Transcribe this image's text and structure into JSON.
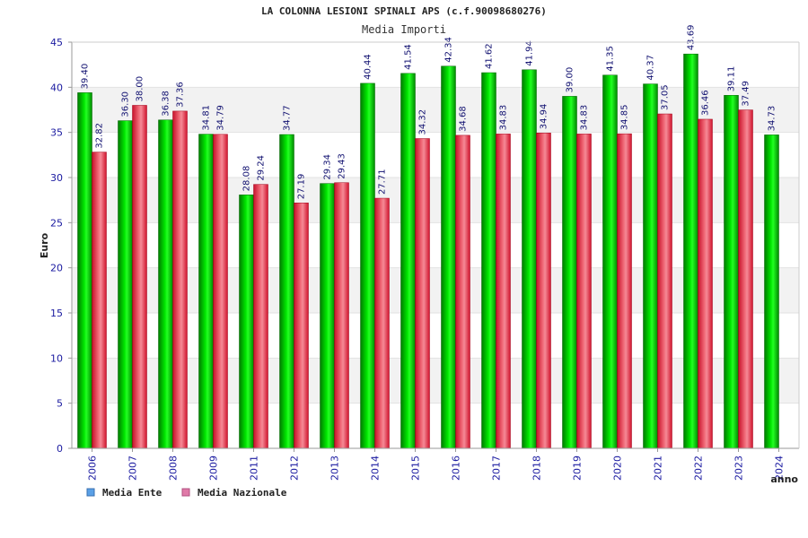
{
  "chart_data": {
    "type": "bar",
    "title": "LA COLONNA LESIONI SPINALI APS (c.f.90098680276)",
    "subtitle": "Media Importi",
    "xlabel": "anno",
    "ylabel": "Euro",
    "ylim": [
      0,
      45
    ],
    "yticks": [
      "0",
      "5",
      "10",
      "15",
      "20",
      "25",
      "30",
      "35",
      "40",
      "45"
    ],
    "categories": [
      "2006",
      "2007",
      "2008",
      "2009",
      "2011",
      "2012",
      "2013",
      "2014",
      "2015",
      "2016",
      "2017",
      "2018",
      "2019",
      "2020",
      "2021",
      "2022",
      "2023",
      "2024"
    ],
    "series": [
      {
        "name": "Media Ente",
        "color": "#00c800",
        "values": [
          39.4,
          36.3,
          36.38,
          34.81,
          28.08,
          34.77,
          29.34,
          40.44,
          41.54,
          42.34,
          41.62,
          41.94,
          39.0,
          41.35,
          40.37,
          43.69,
          39.11,
          34.73
        ],
        "labels": [
          "39.40",
          "36.30",
          "36.38",
          "34.81",
          "28.08",
          "34.77",
          "29.34",
          "40.44",
          "41.54",
          "42.34",
          "41.62",
          "41.94",
          "39.00",
          "41.35",
          "40.37",
          "43.69",
          "39.11",
          "34.73"
        ]
      },
      {
        "name": "Media Nazionale",
        "color": "#e8283c",
        "values": [
          32.82,
          38.0,
          37.36,
          34.79,
          29.24,
          27.19,
          29.43,
          27.71,
          34.32,
          34.68,
          34.83,
          34.94,
          34.83,
          34.85,
          37.05,
          36.46,
          37.49,
          null
        ],
        "labels": [
          "32.82",
          "38.00",
          "37.36",
          "34.79",
          "29.24",
          "27.19",
          "29.43",
          "27.71",
          "34.32",
          "34.68",
          "34.83",
          "34.94",
          "34.83",
          "34.85",
          "37.05",
          "36.46",
          "37.49",
          ""
        ]
      }
    ],
    "legend": {
      "position": "bottom-left",
      "items": [
        {
          "label": "Media Ente",
          "color": "#5aa0e6"
        },
        {
          "label": "Media Nazionale",
          "color": "#e07aa8"
        }
      ]
    },
    "grid": true
  }
}
